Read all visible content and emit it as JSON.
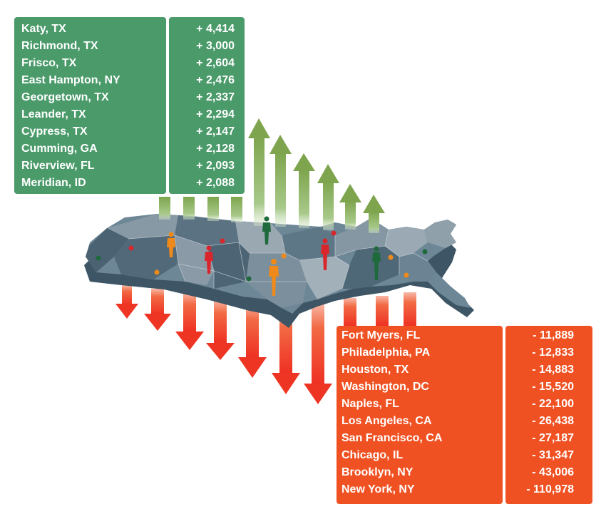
{
  "gainers": [
    {
      "city": "Katy, TX",
      "change": "+ 4,414"
    },
    {
      "city": "Richmond, TX",
      "change": "+ 3,000"
    },
    {
      "city": "Frisco, TX",
      "change": "+ 2,604"
    },
    {
      "city": "East Hampton, NY",
      "change": "+ 2,476"
    },
    {
      "city": "Georgetown, TX",
      "change": "+ 2,337"
    },
    {
      "city": "Leander, TX",
      "change": "+ 2,294"
    },
    {
      "city": "Cypress, TX",
      "change": "+ 2,147"
    },
    {
      "city": "Cumming, GA",
      "change": "+ 2,128"
    },
    {
      "city": "Riverview, FL",
      "change": "+ 2,093"
    },
    {
      "city": "Meridian, ID",
      "change": "+ 2,088"
    }
  ],
  "losers": [
    {
      "city": "Fort Myers, FL",
      "change": "- 11,889"
    },
    {
      "city": "Philadelphia, PA",
      "change": "- 12,833"
    },
    {
      "city": "Houston, TX",
      "change": "- 14,883"
    },
    {
      "city": "Washington, DC",
      "change": "- 15,520"
    },
    {
      "city": "Naples, FL",
      "change": "- 22,100"
    },
    {
      "city": "Los Angeles, CA",
      "change": "- 26,438"
    },
    {
      "city": "San Francisco, CA",
      "change": "- 27,187"
    },
    {
      "city": "Chicago, IL",
      "change": "- 31,347"
    },
    {
      "city": "Brooklyn, NY",
      "change": "- 43,006"
    },
    {
      "city": "New York, NY",
      "change": "- 110,978"
    }
  ],
  "colors": {
    "gain": "#4a9a6a",
    "loss": "#f05122",
    "arrow_up": "#86ad5a",
    "arrow_down": "#f0422a",
    "map_dark": "#5c7484",
    "map_light": "#9aa8b2",
    "person_green": "#1f6a3c",
    "person_red": "#d9262c",
    "person_orange": "#ef8a1a"
  },
  "icons": [
    "up-arrow-icon",
    "down-arrow-icon",
    "person-icon",
    "us-map-icon"
  ]
}
